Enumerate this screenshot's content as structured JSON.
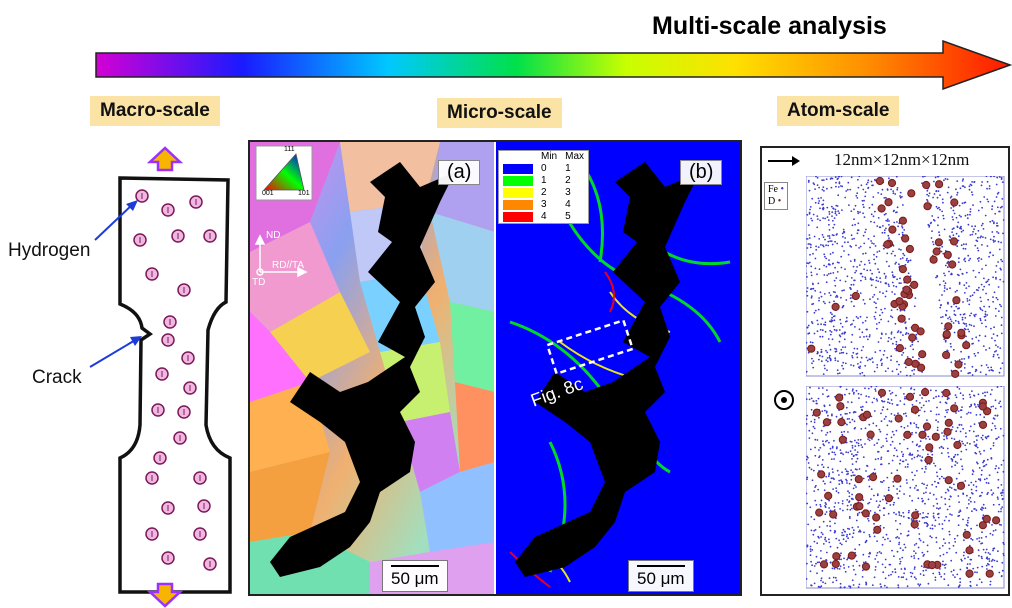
{
  "header": {
    "title": "Multi-scale analysis"
  },
  "scales": {
    "macro": "Macro-scale",
    "micro": "Micro-scale",
    "atom": "Atom-scale"
  },
  "colors": {
    "arrow_gradient": [
      "#d400d4",
      "#1a1aff",
      "#00c8ff",
      "#00e04a",
      "#c8ff00",
      "#ffe000",
      "#ff9000",
      "#ff1800"
    ],
    "label_bg": "#fbe3a6",
    "pole_arrow": "#f7b500",
    "pole_arrow_outline": "#9b30ff"
  },
  "macro": {
    "hydrogen_label": "Hydrogen",
    "crack_label": "Crack",
    "atom_symbol": "H"
  },
  "micro": {
    "panel_a_label": "(a)",
    "panel_b_label": "(b)",
    "scalebar": "50 μm",
    "ipf_corners": {
      "top": "111",
      "left": "001",
      "right": "101"
    },
    "axes": {
      "nd": "ND",
      "rd": "RD//TA",
      "td": "TD"
    },
    "annotation": "Fig. 8c",
    "legend": {
      "headers": {
        "min": "Min",
        "max": "Max"
      },
      "rows": [
        {
          "color": "#0000ff",
          "min": "0",
          "max": "1"
        },
        {
          "color": "#00ff00",
          "min": "1",
          "max": "2"
        },
        {
          "color": "#ffff00",
          "min": "2",
          "max": "3"
        },
        {
          "color": "#ff8800",
          "min": "3",
          "max": "4"
        },
        {
          "color": "#ff0000",
          "min": "4",
          "max": "5"
        }
      ]
    }
  },
  "atom": {
    "dimensions": "12nm×12nm×12nm",
    "key": {
      "fe": "Fe",
      "d": "D"
    },
    "atom_colors": {
      "fe": "#3b3bcf",
      "d": "#7a1a1a"
    }
  }
}
